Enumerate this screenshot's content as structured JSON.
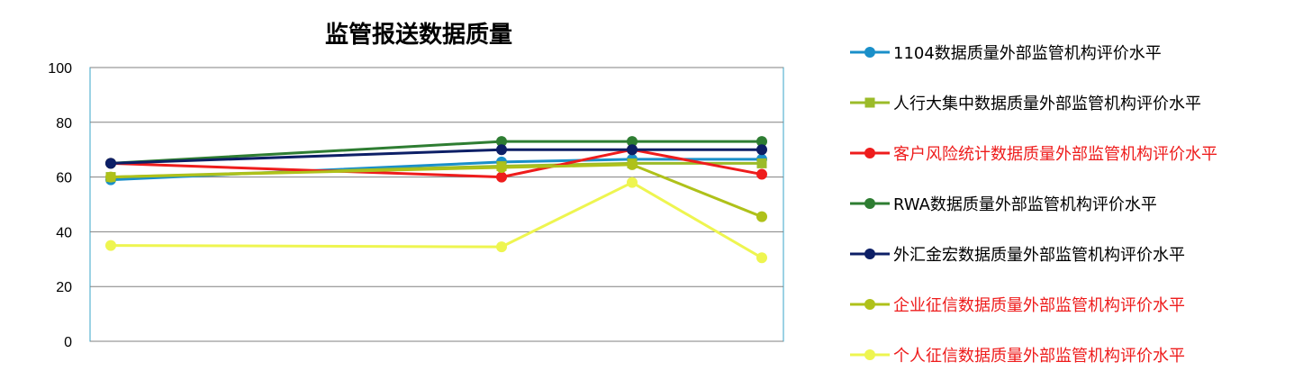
{
  "chart_data": {
    "type": "line",
    "title": "监管报送数据质量",
    "xlabel": "",
    "ylabel": "",
    "ylim": [
      0,
      100
    ],
    "yticks": [
      0,
      20,
      40,
      60,
      80,
      100
    ],
    "grid": true,
    "legend_position": "right",
    "categories": [
      "",
      "",
      "",
      ""
    ],
    "series": [
      {
        "name": "1104数据质量外部监管机构评价水平",
        "color": "#1a8fc9",
        "marker": "circle",
        "label_color": "#000000",
        "values": [
          59,
          65.5,
          66.5,
          66.5
        ]
      },
      {
        "name": "人行大集中数据质量外部监管机构评价水平",
        "color": "#9bbb29",
        "marker": "square",
        "label_color": "#000000",
        "values": [
          60,
          64,
          65,
          65
        ]
      },
      {
        "name": "客户风险统计数据质量外部监管机构评价水平",
        "color": "#ee1c1c",
        "marker": "circle",
        "label_color": "#ee1c1c",
        "values": [
          65,
          60,
          70,
          61
        ]
      },
      {
        "name": "RWA数据质量外部监管机构评价水平",
        "color": "#2e7d32",
        "marker": "circle",
        "label_color": "#000000",
        "values": [
          65,
          73,
          73,
          73
        ]
      },
      {
        "name": "外汇金宏数据质量外部监管机构评价水平",
        "color": "#0d1f66",
        "marker": "circle",
        "label_color": "#000000",
        "values": [
          65,
          70,
          70,
          70
        ]
      },
      {
        "name": "企业征信数据质量外部监管机构评价水平",
        "color": "#afc11a",
        "marker": "circle",
        "label_color": "#ee1c1c",
        "values": [
          60,
          63.5,
          64.5,
          45.5
        ]
      },
      {
        "name": "个人征信数据质量外部监管机构评价水平",
        "color": "#eef550",
        "marker": "circle",
        "label_color": "#ee1c1c",
        "values": [
          35,
          34.5,
          58,
          30.5
        ]
      }
    ]
  }
}
